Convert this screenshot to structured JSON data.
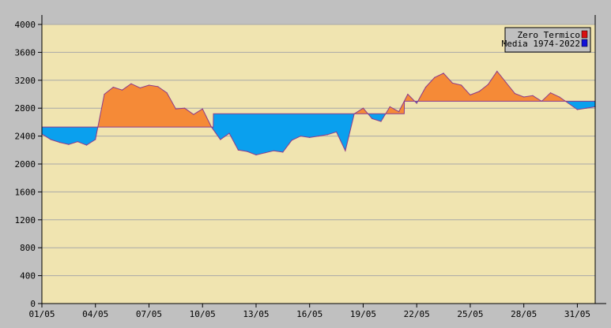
{
  "chart_data": {
    "type": "area",
    "title": "",
    "xlabel": "",
    "ylabel": "",
    "ylim": [
      0,
      4000
    ],
    "y_ticks": [
      0,
      400,
      800,
      1200,
      1600,
      2000,
      2400,
      2800,
      3200,
      3600,
      4000
    ],
    "x_tick_days": [
      1,
      4,
      7,
      10,
      13,
      16,
      19,
      22,
      25,
      28,
      31
    ],
    "x_tick_labels": [
      "01/05",
      "04/05",
      "07/05",
      "10/05",
      "13/05",
      "16/05",
      "19/05",
      "22/05",
      "25/05",
      "28/05",
      "31/05"
    ],
    "grid": true,
    "legend_position": "top-right",
    "colors": {
      "background": "#c0c0c0",
      "plot": "#f0e4b0",
      "above": "#f58a37",
      "below": "#0aa0ee",
      "line": "#8d3a8a",
      "grid": "#a8a8a8",
      "legend_zero_swatch": "#d81010",
      "legend_media_swatch": "#1010d8"
    },
    "series": [
      {
        "name": "Zero Termico",
        "x": [
          1.0,
          1.5,
          2.0,
          2.5,
          3.0,
          3.5,
          4.0,
          4.5,
          5.0,
          5.5,
          6.0,
          6.5,
          7.0,
          7.5,
          8.0,
          8.5,
          9.0,
          9.5,
          10.0,
          10.5,
          11.0,
          11.5,
          12.0,
          12.5,
          13.0,
          13.5,
          14.0,
          14.5,
          15.0,
          15.5,
          16.0,
          16.5,
          17.0,
          17.5,
          18.0,
          18.5,
          19.0,
          19.5,
          20.0,
          20.5,
          21.0,
          21.5,
          22.0,
          22.5,
          23.0,
          23.5,
          24.0,
          24.5,
          25.0,
          25.5,
          26.0,
          26.5,
          27.0,
          27.5,
          28.0,
          28.5,
          29.0,
          29.5,
          30.0,
          30.5,
          31.0,
          31.5,
          32.0
        ],
        "values": [
          2430,
          2350,
          2310,
          2280,
          2320,
          2270,
          2350,
          3000,
          3100,
          3060,
          3150,
          3090,
          3130,
          3110,
          3020,
          2790,
          2800,
          2710,
          2790,
          2530,
          2350,
          2440,
          2200,
          2180,
          2130,
          2160,
          2190,
          2170,
          2340,
          2400,
          2380,
          2400,
          2420,
          2460,
          2190,
          2720,
          2800,
          2650,
          2610,
          2820,
          2750,
          3000,
          2870,
          3100,
          3240,
          3300,
          3160,
          3130,
          2990,
          3040,
          3140,
          3330,
          3170,
          3010,
          2960,
          2980,
          2900,
          3020,
          2960,
          2870,
          2780,
          2800,
          2820
        ]
      },
      {
        "name": "Media 1974-2022",
        "x": [
          1.0,
          4.0,
          4.01,
          10.6,
          10.61,
          19.0,
          19.01,
          21.3,
          21.31,
          31.0,
          32.0
        ],
        "values": [
          2530,
          2530,
          2530,
          2530,
          2720,
          2720,
          2720,
          2720,
          2900,
          2900,
          2900
        ]
      }
    ],
    "legend": [
      "Zero Termico",
      "Media 1974-2022"
    ]
  }
}
